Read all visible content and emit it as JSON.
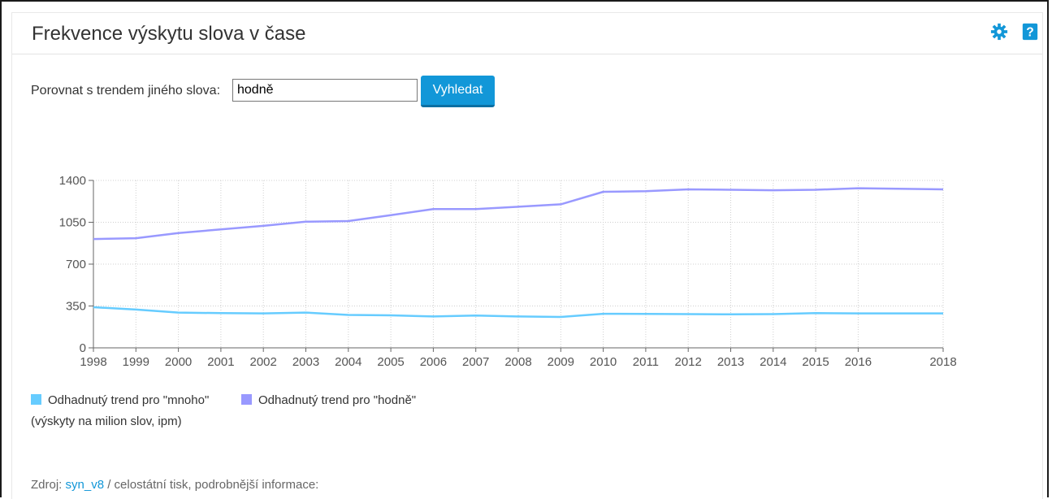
{
  "header": {
    "title": "Frekvence výskytu slova v čase",
    "icons": [
      "gear-icon",
      "help-icon"
    ],
    "help_glyph": "?",
    "accent": "#1297d8"
  },
  "compare": {
    "label": "Porovnat s trendem jiného slova:",
    "input_value": "hodně",
    "button_label": "Vyhledat"
  },
  "chart_data": {
    "type": "line",
    "title": "",
    "xlabel": "",
    "ylabel": "",
    "ylim": [
      0,
      1400
    ],
    "yticks": [
      "0",
      "350",
      "700",
      "1050",
      "1400"
    ],
    "x": [
      1998,
      1999,
      2000,
      2001,
      2002,
      2003,
      2004,
      2005,
      2006,
      2007,
      2008,
      2009,
      2010,
      2011,
      2012,
      2013,
      2014,
      2015,
      2016,
      2018
    ],
    "xticks": [
      "1998",
      "1999",
      "2000",
      "2001",
      "2002",
      "2003",
      "2004",
      "2005",
      "2006",
      "2007",
      "2008",
      "2009",
      "2010",
      "2011",
      "2012",
      "2013",
      "2014",
      "2015",
      "2016",
      "2018"
    ],
    "grid": true,
    "legend_position": "bottom-left",
    "series": [
      {
        "name": "Odhadnutý trend pro \"mnoho\"",
        "color": "#66ccff",
        "values": [
          340,
          320,
          295,
          290,
          288,
          295,
          275,
          272,
          262,
          270,
          262,
          258,
          285,
          284,
          282,
          280,
          282,
          290,
          288,
          288
        ]
      },
      {
        "name": "Odhadnutý trend pro \"hodně\"",
        "color": "#9999ff",
        "values": [
          910,
          917,
          960,
          990,
          1020,
          1055,
          1060,
          1110,
          1160,
          1160,
          1180,
          1200,
          1305,
          1310,
          1325,
          1322,
          1318,
          1322,
          1335,
          1325
        ]
      }
    ]
  },
  "legend": {
    "units": "(výskyty na milion slov, ipm)"
  },
  "footer": {
    "prefix": "Zdroj:",
    "corpus_link": "syn_v8",
    "suffix": "/ celostátní tisk, podrobnější informace:"
  }
}
